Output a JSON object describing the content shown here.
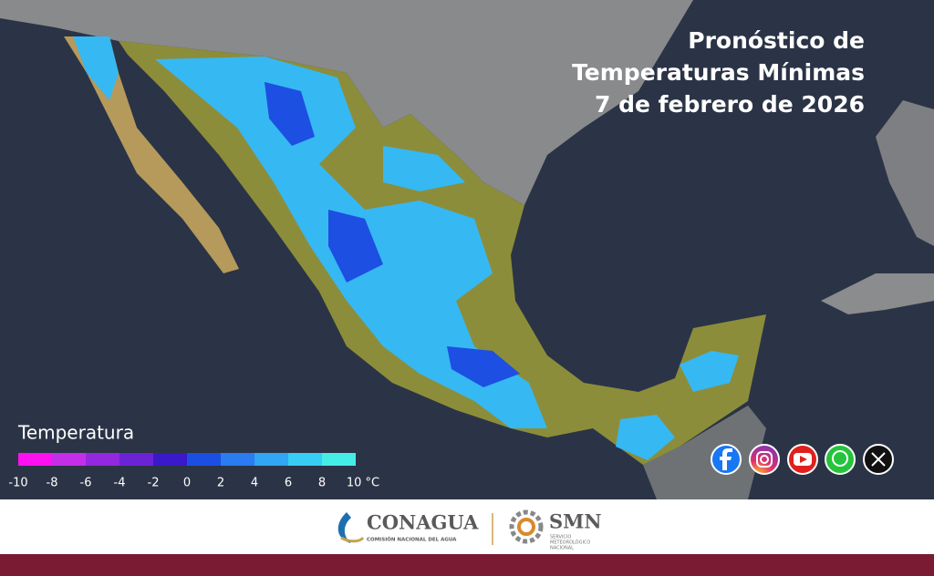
{
  "title": [
    "Pronóstico de",
    "Temperaturas Mínimas",
    "7 de febrero de 2026"
  ],
  "legend": {
    "title": "Temperatura",
    "ticks": [
      "-10",
      "-8",
      "-6",
      "-4",
      "-2",
      "0",
      "2",
      "4",
      "6",
      "8",
      "10 °C"
    ],
    "colors": [
      "#ff10f0",
      "#c52ee8",
      "#9328e0",
      "#6a24d6",
      "#3a19c8",
      "#1b4fe2",
      "#2a7cf0",
      "#32a5f4",
      "#38cdf4",
      "#44eee6"
    ]
  },
  "footer": {
    "conagua": "CONAGUA",
    "conagua_sub": "COMISIÓN NACIONAL DEL AGUA",
    "smn": "SMN",
    "smn_sub": [
      "SERVICIO",
      "METEOROLÓGICO",
      "NACIONAL"
    ]
  }
}
